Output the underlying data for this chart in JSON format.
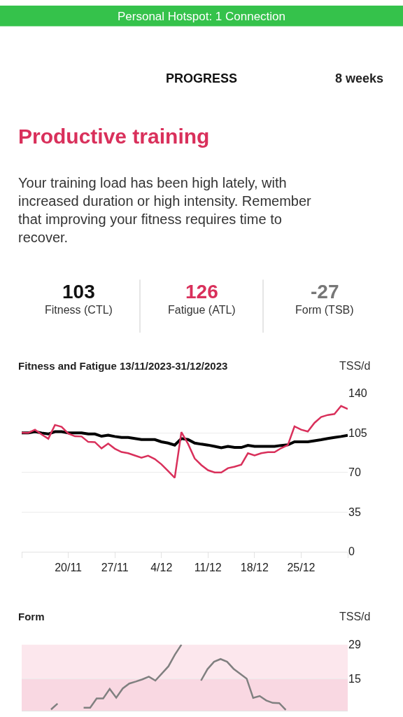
{
  "chart_data": [
    {
      "type": "other",
      "title": "Productive training",
      "annotations": [
        "Personal Hotspot: 1 Connection",
        "PROGRESS",
        "8 weeks",
        "Your training load has been high lately, with increased duration or high intensity. Remember that improving your fitness requires time to recover.",
        "103",
        "Fitness (CTL)",
        "126",
        "Fatigue (ATL)",
        "-27",
        "Form (TSB)"
      ]
    },
    {
      "type": "line",
      "title": "Fitness and Fatigue 13/11/2023-31/12/2023",
      "ylabel": "TSS/d",
      "x": [
        "2023-11-13",
        "2023-11-14",
        "2023-11-15",
        "2023-11-16",
        "2023-11-17",
        "2023-11-18",
        "2023-11-19",
        "2023-11-20",
        "2023-11-21",
        "2023-11-22",
        "2023-11-23",
        "2023-11-24",
        "2023-11-25",
        "2023-11-26",
        "2023-11-27",
        "2023-11-28",
        "2023-11-29",
        "2023-11-30",
        "2023-12-01",
        "2023-12-02",
        "2023-12-03",
        "2023-12-04",
        "2023-12-05",
        "2023-12-06",
        "2023-12-07",
        "2023-12-08",
        "2023-12-09",
        "2023-12-10",
        "2023-12-11",
        "2023-12-12",
        "2023-12-13",
        "2023-12-14",
        "2023-12-15",
        "2023-12-16",
        "2023-12-17",
        "2023-12-18",
        "2023-12-19",
        "2023-12-20",
        "2023-12-21",
        "2023-12-22",
        "2023-12-23",
        "2023-12-24",
        "2023-12-25",
        "2023-12-26",
        "2023-12-27",
        "2023-12-28",
        "2023-12-29",
        "2023-12-30",
        "2023-12-31",
        "2024-01-01"
      ],
      "series": [
        {
          "color": "#000000",
          "values": [
            105,
            105,
            106,
            104.9,
            104,
            106,
            106,
            105,
            105,
            105,
            104,
            104,
            102,
            102.9,
            101.8,
            100.9,
            100.9,
            100,
            99.1,
            99.1,
            99.1,
            97.1,
            96,
            94.2,
            100,
            99.1,
            96,
            95,
            94.2,
            93,
            91.9,
            93,
            92.1,
            92.1,
            93.9,
            93,
            93,
            93,
            93,
            93.9,
            94.4,
            97.1,
            97.1,
            97.1,
            98,
            98.9,
            100,
            100.9,
            101.8,
            102.9
          ]
        },
        {
          "color": "#d9305b",
          "values": [
            105.1,
            105,
            107.8,
            103.6,
            99.8,
            112,
            110.3,
            104.4,
            102,
            101.8,
            97,
            96.8,
            91.3,
            95.5,
            91,
            88.1,
            87,
            85,
            83,
            84.8,
            81.9,
            77.2,
            71.3,
            65.3,
            105.6,
            95.3,
            82.3,
            76.5,
            72,
            70,
            70,
            73.8,
            75.1,
            76.9,
            87,
            85,
            87,
            87.9,
            87.9,
            91.5,
            94.2,
            110.7,
            107.8,
            106.2,
            113.8,
            119,
            120.8,
            121.7,
            128.8,
            126.1
          ]
        }
      ],
      "xlim": [
        "2023-11-13",
        "2024-01-01"
      ],
      "xticks": [
        {
          "value": "2023-11-13",
          "label": null
        },
        {
          "value": "2023-11-20",
          "label": "20/11"
        },
        {
          "value": "2023-11-27",
          "label": "27/11"
        },
        {
          "value": "2023-12-04",
          "label": "4/12"
        },
        {
          "value": "2023-12-11",
          "label": "11/12"
        },
        {
          "value": "2023-12-18",
          "label": "18/12"
        },
        {
          "value": "2023-12-25",
          "label": "25/12"
        },
        {
          "value": "2024-01-01",
          "label": null
        }
      ],
      "ylim": [
        0,
        140
      ],
      "yticks": [
        0,
        35,
        70,
        105,
        140
      ],
      "grid": "y",
      "line_style": "solid",
      "marker": "none"
    },
    {
      "type": "line",
      "title": "Form",
      "ylabel": "TSS/d",
      "categories": [
        null,
        null,
        null,
        null,
        null,
        null,
        null,
        null,
        null,
        null,
        null,
        null,
        null,
        null,
        null,
        null,
        null,
        null,
        null,
        null,
        null,
        null,
        null,
        null,
        null,
        null,
        null,
        null,
        null,
        null,
        null,
        null,
        null,
        null,
        null,
        null,
        null,
        null,
        null,
        null,
        null,
        null,
        null,
        null,
        null,
        null,
        null,
        null,
        null,
        null
      ],
      "series": [
        {
          "color": "#808080",
          "values": [
            null,
            null,
            null,
            null,
            2.5,
            4.9,
            null,
            null,
            null,
            3.2,
            3.2,
            7.0,
            7.0,
            10.9,
            7.3,
            11.1,
            13.1,
            13.9,
            14.8,
            15.9,
            14.3,
            17.2,
            20.1,
            24.9,
            29,
            null,
            null,
            14.3,
            19,
            22,
            23.1,
            22,
            19.1,
            17.1,
            15.1,
            7.2,
            8,
            6.2,
            5.2,
            5.1,
            2.3,
            null,
            null,
            null,
            null,
            null,
            null,
            null,
            null,
            null
          ]
        }
      ],
      "ylim": [
        2,
        29
      ],
      "yticks": [
        15,
        29
      ],
      "grid": "y",
      "tick_labels": "y",
      "line_style": "solid",
      "marker": "none",
      "bands": [
        {
          "axis": "y",
          "from": 15,
          "to": 29,
          "color": "#f4afc3"
        },
        {
          "axis": "y",
          "from": 2,
          "to": 15,
          "color": "#ec7fa0"
        }
      ]
    }
  ]
}
